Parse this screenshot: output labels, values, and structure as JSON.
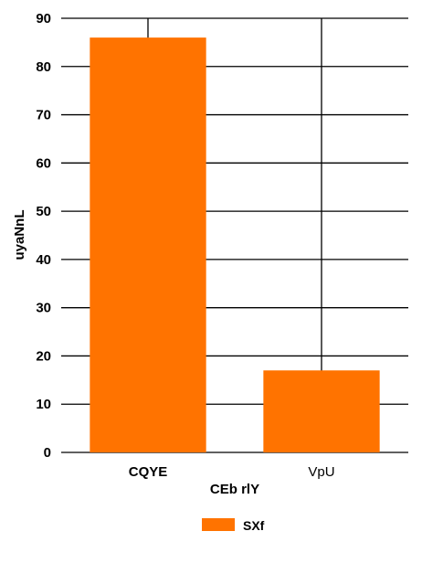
{
  "chart_data": {
    "type": "bar",
    "categories": [
      "CQYE",
      "VpU"
    ],
    "series": [
      {
        "name": "SXf",
        "values": [
          86,
          17
        ]
      }
    ],
    "xlabel": "CEb  rlY",
    "ylabel": "uyaNnL",
    "ylim": [
      0,
      90
    ],
    "yticks": [
      0,
      10,
      20,
      30,
      40,
      50,
      60,
      70,
      80,
      90
    ],
    "grid": "horizontal and vertical",
    "legend": "bottom-center",
    "colors": {
      "bar": "#ff7300",
      "grid": "#000000"
    }
  }
}
